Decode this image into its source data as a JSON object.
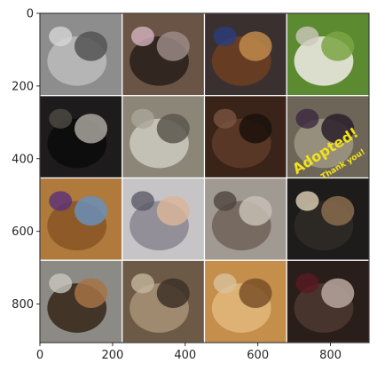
{
  "axes": {
    "x_ticks": [
      0,
      200,
      400,
      600,
      800
    ],
    "y_ticks": [
      0,
      200,
      400,
      600,
      800
    ],
    "xlim": [
      0,
      906
    ],
    "ylim": [
      906,
      0
    ]
  },
  "grid": {
    "rows": 4,
    "cols": 4,
    "tiles": [
      {
        "subject": "two-kittens",
        "colors": [
          "#8d8d8d",
          "#b9b9b9",
          "#545454",
          "#d6d6d6"
        ]
      },
      {
        "subject": "cat-lying-in-cage",
        "colors": [
          "#6a5446",
          "#2b211c",
          "#9a8a86",
          "#d4b3bf"
        ]
      },
      {
        "subject": "calico-cat",
        "colors": [
          "#3a3030",
          "#6b3f22",
          "#bf8a4c",
          "#2a3d7d"
        ]
      },
      {
        "subject": "white-dog-on-grass",
        "colors": [
          "#5c8a30",
          "#e9e6df",
          "#7aa443",
          "#cdc8bb"
        ]
      },
      {
        "subject": "black-cat",
        "colors": [
          "#1d1b1b",
          "#0d0c0c",
          "#a8a59e",
          "#4f4b44"
        ]
      },
      {
        "subject": "tabby-cats-on-blanket",
        "colors": [
          "#8c8679",
          "#c9c6bd",
          "#5c574c",
          "#aaa59a"
        ]
      },
      {
        "subject": "fluffy-brown-dog",
        "colors": [
          "#3a2318",
          "#5c3a28",
          "#1b100c",
          "#7a5440"
        ]
      },
      {
        "subject": "tabby-cat-adopted-sign",
        "colors": [
          "#6d6658",
          "#9a937f",
          "#2a1e2a",
          "#3c2840"
        ]
      },
      {
        "subject": "tan-dog-purple-harness",
        "colors": [
          "#b07a3c",
          "#8a5626",
          "#6a8fb8",
          "#5b2f7a"
        ]
      },
      {
        "subject": "kitten-held-in-hands",
        "colors": [
          "#c7c4c7",
          "#8c8a94",
          "#d8b59a",
          "#5a5a66"
        ]
      },
      {
        "subject": "grey-cat-looking-up",
        "colors": [
          "#a19a93",
          "#72665c",
          "#c7beb4",
          "#4f4540"
        ]
      },
      {
        "subject": "black-and-siamese-cats",
        "colors": [
          "#1e1c1a",
          "#2e2a26",
          "#8a6c4c",
          "#e0d2b8"
        ]
      },
      {
        "subject": "german-shepherd",
        "colors": [
          "#8c8a85",
          "#3a2a1c",
          "#a47345",
          "#c8c5bd"
        ]
      },
      {
        "subject": "long-hair-cat",
        "colors": [
          "#6c5a46",
          "#a58f74",
          "#3d3127",
          "#c5b59d"
        ]
      },
      {
        "subject": "orange-tabby-cat",
        "colors": [
          "#c58e4b",
          "#e0b67a",
          "#7a5028",
          "#d8c29c"
        ]
      },
      {
        "subject": "black-and-white-kittens",
        "colors": [
          "#2a1e1a",
          "#4a3630",
          "#b8a8a0",
          "#5a1a22"
        ]
      }
    ]
  },
  "overlay_text": {
    "adopted": "Adopted!",
    "thanks": "Thank you!"
  },
  "colors": {
    "adopted_text": "#f2e21b"
  }
}
